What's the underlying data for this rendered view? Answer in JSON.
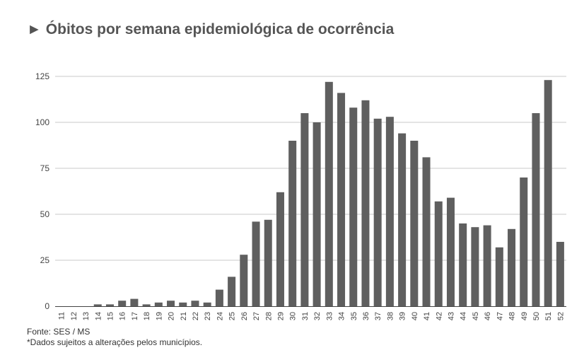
{
  "title": {
    "arrow": "►",
    "text": "Óbitos por semana epidemiológica de ocorrência"
  },
  "footer": {
    "source": "Fonte: SES / MS",
    "note": "*Dados sujeitos a alterações pelos municípios."
  },
  "colors": {
    "bar": "#5f5f5f",
    "grid": "#c8c8c8",
    "axis": "#444444",
    "tick_text": "#444444"
  },
  "chart_data": {
    "type": "bar",
    "title": "Óbitos por semana epidemiológica de ocorrência",
    "xlabel": "",
    "ylabel": "",
    "ylim": [
      0,
      125
    ],
    "yticks": [
      0,
      25,
      50,
      75,
      100,
      125
    ],
    "grid": true,
    "legend": "none",
    "categories": [
      "11",
      "12",
      "13",
      "14",
      "15",
      "16",
      "17",
      "18",
      "19",
      "20",
      "21",
      "22",
      "23",
      "24",
      "25",
      "26",
      "27",
      "28",
      "29",
      "30",
      "31",
      "32",
      "33",
      "34",
      "35",
      "36",
      "37",
      "38",
      "39",
      "40",
      "41",
      "42",
      "43",
      "44",
      "45",
      "46",
      "47",
      "48",
      "49",
      "50",
      "51",
      "52"
    ],
    "values": [
      0,
      0,
      0,
      1,
      1,
      3,
      4,
      1,
      2,
      3,
      2,
      3,
      2,
      9,
      16,
      28,
      46,
      47,
      62,
      90,
      105,
      100,
      122,
      116,
      108,
      112,
      102,
      103,
      94,
      90,
      81,
      57,
      59,
      45,
      43,
      44,
      32,
      42,
      70,
      105,
      123,
      35
    ]
  }
}
